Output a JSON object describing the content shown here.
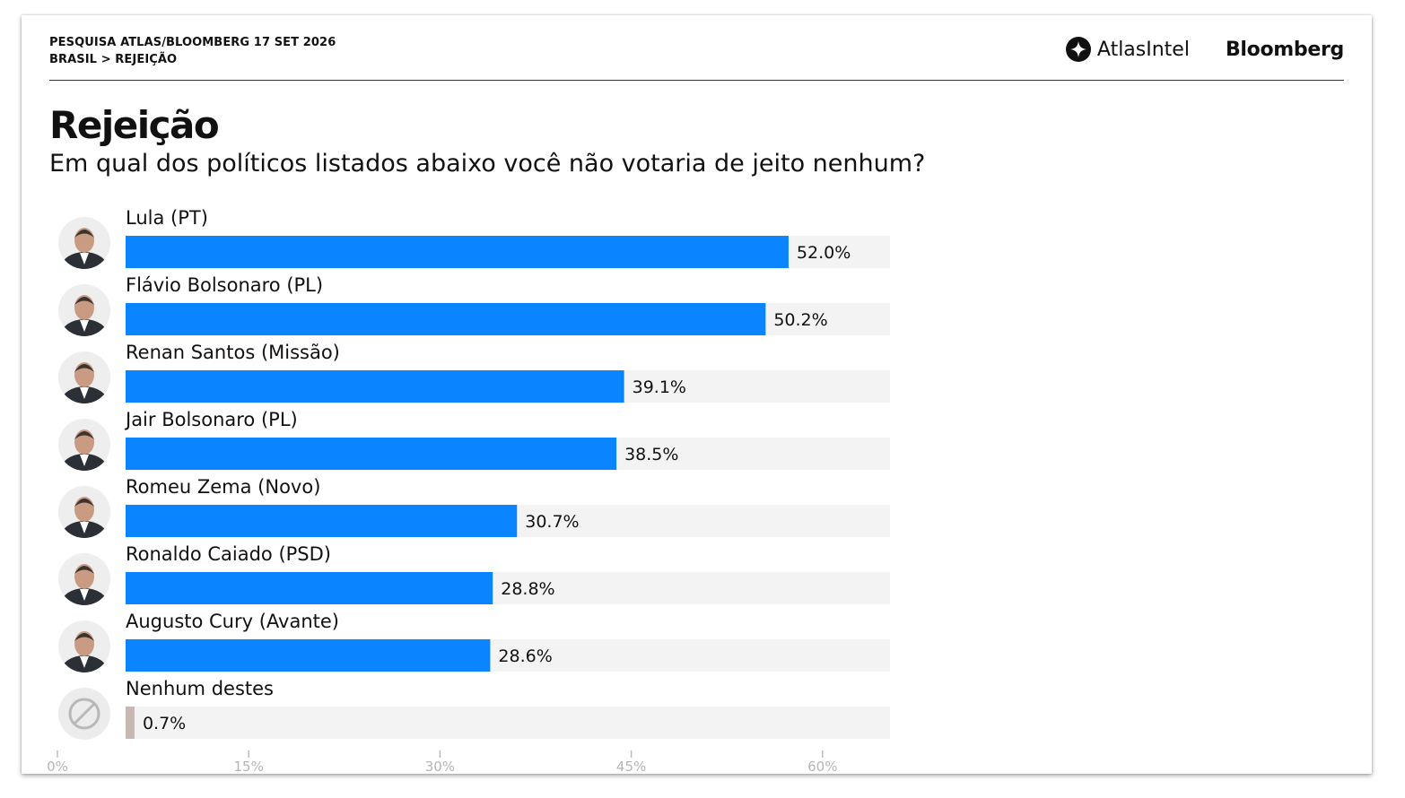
{
  "header": {
    "survey": "PESQUISA ATLAS/BLOOMBERG 17 SET 2026",
    "breadcrumb": "BRASIL > REJEIÇÃO",
    "logo_atlas": "AtlasIntel",
    "logo_bloomberg": "Bloomberg"
  },
  "chart_data": {
    "type": "bar",
    "orientation": "horizontal",
    "title": "Rejeição",
    "subtitle": "Em qual dos políticos listados abaixo você não votaria de jeito nenhum?",
    "categories": [
      "Lula (PT)",
      "Flávio Bolsonaro (PL)",
      "Renan Santos (Missão)",
      "Jair Bolsonaro (PL)",
      "Romeu Zema (Novo)",
      "Ronaldo Caiado (PSD)",
      "Augusto Cury (Avante)",
      "Nenhum destes"
    ],
    "values": [
      52.0,
      50.2,
      39.1,
      38.5,
      30.7,
      28.8,
      28.6,
      0.7
    ],
    "value_labels": [
      "52.0%",
      "50.2%",
      "39.1%",
      "38.5%",
      "30.7%",
      "28.8%",
      "28.6%",
      "0.7%"
    ],
    "xlim": [
      0,
      60
    ],
    "x_ticks": [
      "0%",
      "15%",
      "30%",
      "45%",
      "60%"
    ],
    "colors": {
      "bar": "#0a84ff",
      "bar_none": "#c8b8b2",
      "track": "#f3f3f3"
    },
    "icons": [
      "avatar",
      "avatar",
      "avatar",
      "avatar",
      "avatar",
      "avatar",
      "avatar",
      "no-entry-icon"
    ]
  }
}
